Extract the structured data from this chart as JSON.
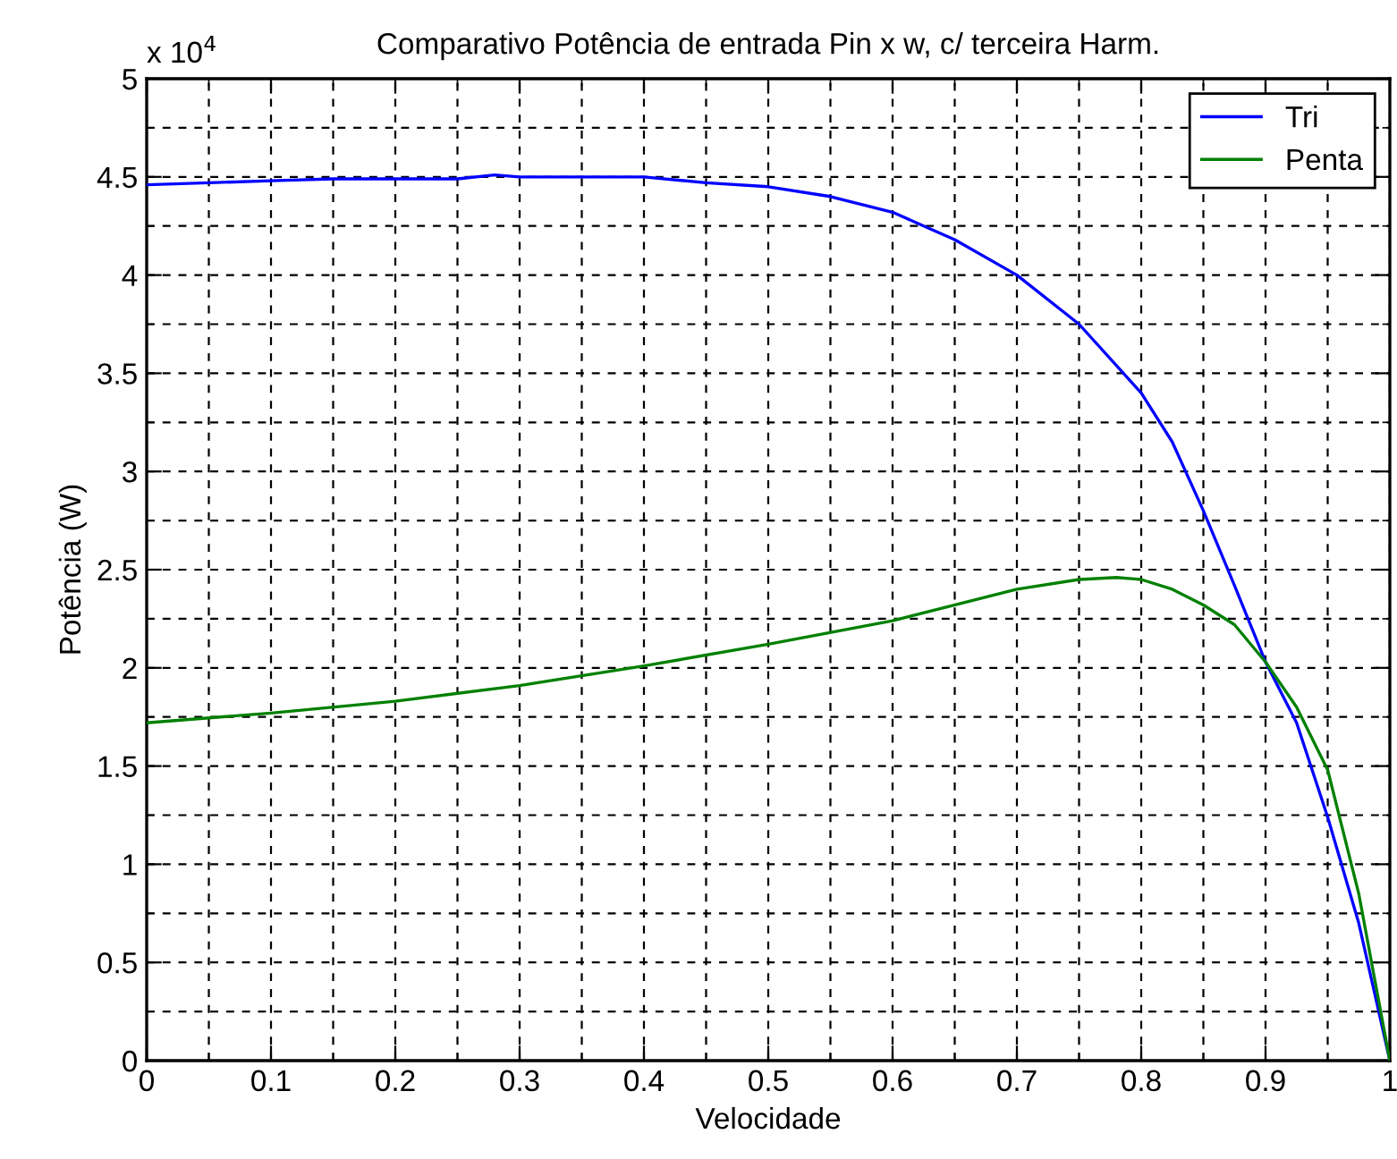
{
  "chart_data": {
    "type": "line",
    "title": "Comparativo Potência de entrada Pin x w, c/ terceira Harm.",
    "xlabel": "Velocidade",
    "ylabel": "Potência (W)",
    "annotations": [
      "x 10$^{4}$"
    ],
    "series": [
      {
        "name": "Tri",
        "color": "#0000ff",
        "x": [
          0,
          0.05,
          0.1,
          0.15,
          0.2,
          0.25,
          0.28,
          0.3,
          0.35,
          0.4,
          0.45,
          0.5,
          0.55,
          0.6,
          0.65,
          0.7,
          0.75,
          0.8,
          0.825,
          0.85,
          0.875,
          0.9,
          0.925,
          0.95,
          0.975,
          1.0
        ],
        "values": [
          4.46,
          4.47,
          4.48,
          4.49,
          4.49,
          4.49,
          4.51,
          4.5,
          4.5,
          4.5,
          4.47,
          4.45,
          4.4,
          4.32,
          4.18,
          4.0,
          3.75,
          3.4,
          3.15,
          2.8,
          2.42,
          2.03,
          1.72,
          1.24,
          0.7,
          0
        ]
      },
      {
        "name": "Penta",
        "color": "#008000",
        "x": [
          0,
          0.1,
          0.2,
          0.3,
          0.4,
          0.5,
          0.6,
          0.7,
          0.75,
          0.78,
          0.8,
          0.825,
          0.85,
          0.875,
          0.9,
          0.925,
          0.95,
          0.975,
          1.0
        ],
        "values": [
          1.72,
          1.77,
          1.83,
          1.91,
          2.01,
          2.12,
          2.24,
          2.4,
          2.45,
          2.46,
          2.45,
          2.4,
          2.32,
          2.22,
          2.03,
          1.8,
          1.48,
          0.85,
          0
        ]
      }
    ],
    "xlim": [
      0,
      1
    ],
    "xticks": [
      0,
      0.1,
      0.2,
      0.3,
      0.4,
      0.5,
      0.6,
      0.7,
      0.8,
      0.9,
      1
    ],
    "ylim": [
      0,
      5
    ],
    "yticks": [
      0,
      0.5,
      1,
      1.5,
      2,
      2.5,
      3,
      3.5,
      4,
      4.5,
      5
    ],
    "grid": true,
    "legend": "top right",
    "marker": "none",
    "line_style": "solid"
  }
}
